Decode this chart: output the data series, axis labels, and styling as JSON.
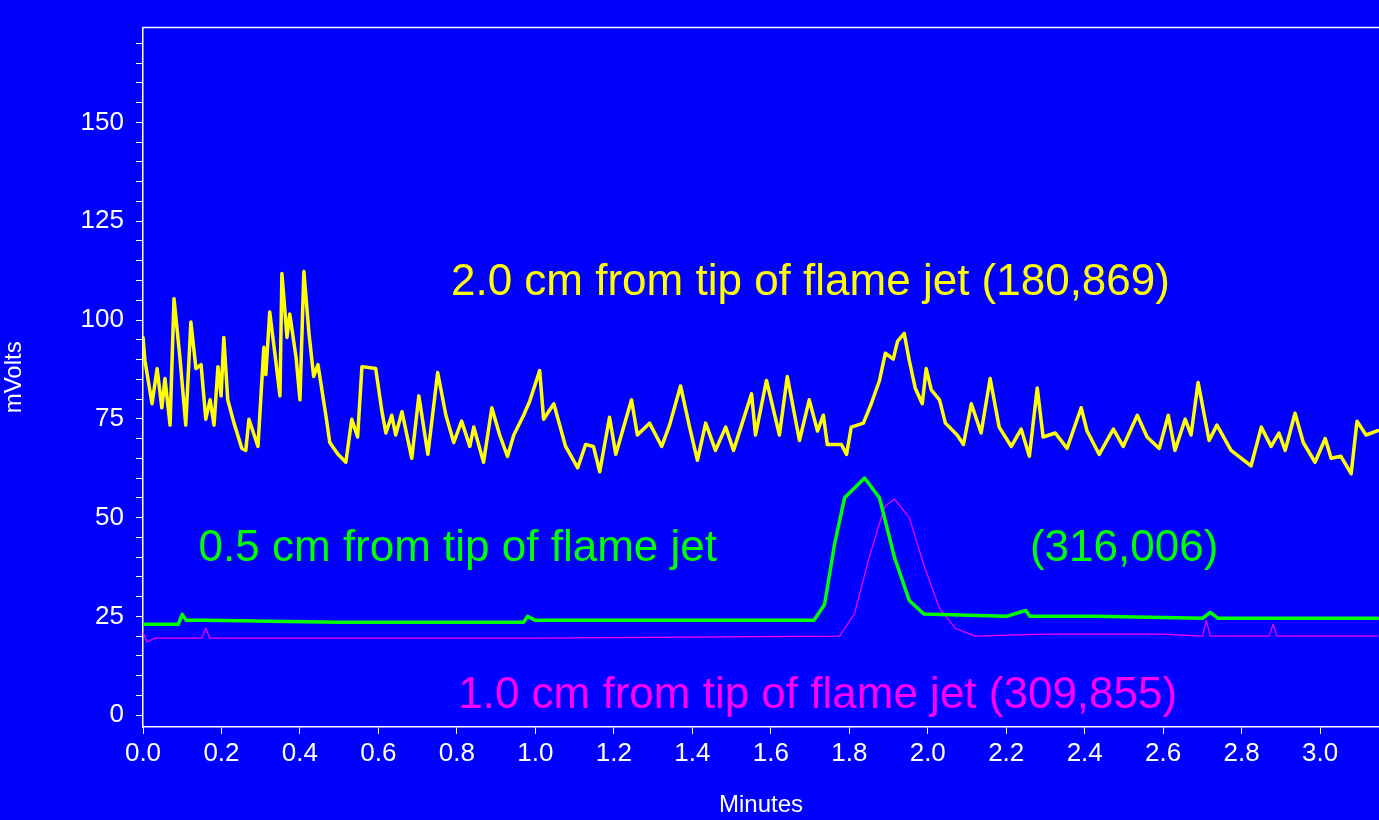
{
  "chart_data": {
    "type": "line",
    "xlabel": "Minutes",
    "ylabel": "mVolts",
    "xlim": [
      0,
      3.15
    ],
    "ylim": [
      -3,
      174
    ],
    "xticks": [
      {
        "value": 0,
        "label": "0.0"
      },
      {
        "value": 0.2,
        "label": "0.2"
      },
      {
        "value": 0.4,
        "label": "0.4"
      },
      {
        "value": 0.6,
        "label": "0.6"
      },
      {
        "value": 0.8,
        "label": "0.8"
      },
      {
        "value": 1,
        "label": "1.0"
      },
      {
        "value": 1.2,
        "label": "1.2"
      },
      {
        "value": 1.4,
        "label": "1.4"
      },
      {
        "value": 1.6,
        "label": "1.6"
      },
      {
        "value": 1.8,
        "label": "1.8"
      },
      {
        "value": 2,
        "label": "2.0"
      },
      {
        "value": 2.2,
        "label": "2.2"
      },
      {
        "value": 2.4,
        "label": "2.4"
      },
      {
        "value": 2.6,
        "label": "2.6"
      },
      {
        "value": 2.8,
        "label": "2.8"
      },
      {
        "value": 3,
        "label": "3.0"
      }
    ],
    "yticks": [
      0,
      {
        "value": 5,
        "label": null
      },
      {
        "value": 10,
        "label": null
      },
      {
        "value": 15,
        "label": null
      },
      {
        "value": 20,
        "label": null
      },
      25,
      {
        "value": 30,
        "label": null
      },
      {
        "value": 35,
        "label": null
      },
      {
        "value": 40,
        "label": null
      },
      {
        "value": 45,
        "label": null
      },
      50,
      {
        "value": 55,
        "label": null
      },
      {
        "value": 60,
        "label": null
      },
      {
        "value": 65,
        "label": null
      },
      {
        "value": 70,
        "label": null
      },
      75,
      {
        "value": 80,
        "label": null
      },
      {
        "value": 85,
        "label": null
      },
      {
        "value": 90,
        "label": null
      },
      {
        "value": 95,
        "label": null
      },
      100,
      {
        "value": 105,
        "label": null
      },
      {
        "value": 110,
        "label": null
      },
      {
        "value": 115,
        "label": null
      },
      {
        "value": 120,
        "label": null
      },
      125,
      {
        "value": 130,
        "label": null
      },
      {
        "value": 135,
        "label": null
      },
      {
        "value": 140,
        "label": null
      },
      {
        "value": 145,
        "label": null
      },
      150,
      {
        "value": 155,
        "label": null
      },
      {
        "value": 160,
        "label": null
      },
      {
        "value": 165,
        "label": null
      },
      {
        "value": 170,
        "label": null
      }
    ],
    "grid": false,
    "legend": false,
    "marker": "none",
    "line_style": "solid",
    "series": [
      {
        "name": "2.0 cm from tip of flame jet (180,869)",
        "color": "#ffff00",
        "x": [
          0,
          0.005,
          0.023,
          0.036,
          0.048,
          0.056,
          0.069,
          0.079,
          0.094,
          0.109,
          0.122,
          0.135,
          0.148,
          0.16,
          0.171,
          0.181,
          0.191,
          0.199,
          0.206,
          0.216,
          0.232,
          0.252,
          0.262,
          0.27,
          0.293,
          0.308,
          0.313,
          0.323,
          0.336,
          0.349,
          0.354,
          0.367,
          0.374,
          0.39,
          0.4,
          0.41,
          0.423,
          0.435,
          0.446,
          0.466,
          0.476,
          0.497,
          0.517,
          0.532,
          0.547,
          0.558,
          0.593,
          0.609,
          0.619,
          0.634,
          0.644,
          0.66,
          0.685,
          0.703,
          0.726,
          0.751,
          0.772,
          0.792,
          0.812,
          0.833,
          0.843,
          0.868,
          0.889,
          0.909,
          0.929,
          0.945,
          0.97,
          0.985,
          1.011,
          1.021,
          1.047,
          1.077,
          1.108,
          1.128,
          1.148,
          1.164,
          1.189,
          1.205,
          1.245,
          1.26,
          1.291,
          1.322,
          1.342,
          1.37,
          1.393,
          1.413,
          1.434,
          1.459,
          1.485,
          1.505,
          1.551,
          1.561,
          1.589,
          1.622,
          1.642,
          1.673,
          1.698,
          1.719,
          1.734,
          1.744,
          1.78,
          1.793,
          1.805,
          1.836,
          1.856,
          1.877,
          1.892,
          1.912,
          1.923,
          1.94,
          1.953,
          1.968,
          1.986,
          1.996,
          2.009,
          2.03,
          2.045,
          2.075,
          2.091,
          2.111,
          2.136,
          2.159,
          2.182,
          2.213,
          2.238,
          2.259,
          2.279,
          2.294,
          2.325,
          2.355,
          2.391,
          2.406,
          2.437,
          2.473,
          2.498,
          2.534,
          2.559,
          2.59,
          2.613,
          2.63,
          2.656,
          2.671,
          2.689,
          2.717,
          2.737,
          2.773,
          2.824,
          2.85,
          2.875,
          2.895,
          2.911,
          2.936,
          2.957,
          2.987,
          3.013,
          3.028,
          3.053,
          3.079,
          3.094,
          3.117,
          3.147
        ],
        "values": [
          95.6,
          89.7,
          78.8,
          87.7,
          77.8,
          85.2,
          73.4,
          105.4,
          90.6,
          73.4,
          99.5,
          87.7,
          88.7,
          74.9,
          79.8,
          73.4,
          88.2,
          80.8,
          95.6,
          79.8,
          73.9,
          67.5,
          67,
          74.9,
          68,
          93.1,
          86.2,
          102,
          91.6,
          80.8,
          111.8,
          95.6,
          101.5,
          90.6,
          79.8,
          112.3,
          96.6,
          85.7,
          88.7,
          75.9,
          69,
          66,
          64,
          74.9,
          70.4,
          88.2,
          87.7,
          76.8,
          71.4,
          75.9,
          70.9,
          76.8,
          65,
          80.8,
          66,
          86.7,
          75.9,
          69,
          74.4,
          68,
          72.9,
          64,
          77.8,
          70.9,
          65.5,
          70.9,
          75.9,
          79.3,
          87.2,
          74.9,
          78.8,
          68,
          62.6,
          68.5,
          68,
          61.6,
          75.4,
          66,
          79.8,
          70.9,
          73.9,
          68,
          73.4,
          83.3,
          72.9,
          64.5,
          73.9,
          67,
          72.9,
          67,
          81.3,
          70.9,
          84.7,
          70.9,
          85.7,
          69.5,
          79.8,
          71.9,
          75.9,
          68.5,
          68.5,
          66,
          72.9,
          73.9,
          78.8,
          84.7,
          91.6,
          90.1,
          94.6,
          96.6,
          89.7,
          82.8,
          78.8,
          87.7,
          82.3,
          79.8,
          73.9,
          70.9,
          68.5,
          78.8,
          71.4,
          85.2,
          72.9,
          68,
          72.4,
          65.5,
          82.8,
          70.4,
          71.4,
          67.5,
          77.8,
          71.9,
          66,
          72.4,
          68,
          75.9,
          70.4,
          67.5,
          75.9,
          67,
          74.9,
          70.9,
          84.2,
          69.5,
          73.4,
          67,
          63.1,
          72.9,
          68,
          71.4,
          67,
          76.4,
          69,
          64,
          70,
          65,
          65.5,
          61.1,
          74.4,
          70.9,
          72
        ]
      },
      {
        "name": "0.5 cm from tip of flame jet (316,006)",
        "color": "#00ff00",
        "x": [
          0,
          0.09,
          0.1,
          0.11,
          0.16,
          0.5,
          0.97,
          0.98,
          1.0,
          1.6,
          1.71,
          1.737,
          1.762,
          1.788,
          1.839,
          1.877,
          1.915,
          1.953,
          1.99,
          2.2,
          2.25,
          2.26,
          2.43,
          2.7,
          2.72,
          2.74,
          3.147
        ],
        "values": [
          23,
          23,
          25.5,
          24,
          24,
          23.5,
          23.5,
          25,
          24,
          24,
          24,
          28,
          43,
          55,
          60,
          55,
          40,
          29,
          25.6,
          25,
          26.5,
          25,
          25,
          24.5,
          26,
          24.5,
          24.5
        ]
      },
      {
        "name": "1.0 cm from tip of flame jet (309,855)",
        "color": "#ff00ff",
        "x": [
          0,
          0.01,
          0.03,
          0.15,
          0.16,
          0.17,
          0.5,
          1.0,
          1.775,
          1.813,
          1.851,
          1.89,
          1.915,
          1.953,
          1.99,
          2.03,
          2.07,
          2.12,
          2.3,
          2.6,
          2.7,
          2.71,
          2.72,
          2.87,
          2.88,
          2.89,
          3.147
        ],
        "values": [
          21,
          18.5,
          19.5,
          19.5,
          22,
          19.5,
          19.5,
          19.5,
          20,
          25.6,
          40,
          52.7,
          54.7,
          50,
          38,
          27,
          22,
          20,
          20.5,
          20.5,
          20,
          24,
          20,
          20,
          23,
          20,
          20
        ]
      }
    ]
  }
}
